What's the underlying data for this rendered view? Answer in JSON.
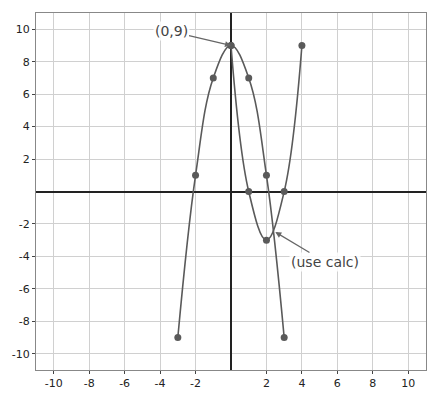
{
  "chart_data": {
    "type": "line",
    "series": [
      {
        "color": "#5a5a5a",
        "marker": "circle",
        "line_style": "solid",
        "x": [
          -3,
          -2,
          -1,
          0,
          1,
          2,
          3
        ],
        "values": [
          -9,
          1,
          7,
          9,
          7,
          1,
          -9
        ]
      },
      {
        "color": "#5a5a5a",
        "marker": "circle",
        "line_style": "solid",
        "x": [
          0,
          1,
          2,
          3,
          4
        ],
        "values": [
          9,
          0,
          -3,
          0,
          9
        ]
      }
    ],
    "annotations": [
      {
        "text": "(0,9)",
        "x": 0,
        "y": 9
      },
      {
        "text": "(use calc)",
        "x": 2.5,
        "y": -2.5
      }
    ],
    "xlim": [
      -11,
      11
    ],
    "ylim": [
      -11,
      11
    ],
    "xticks": [
      -10,
      -8,
      -6,
      -4,
      -2,
      2,
      4,
      6,
      8,
      10
    ],
    "yticks": [
      -10,
      -8,
      -6,
      -4,
      -2,
      2,
      4,
      6,
      8,
      10
    ],
    "grid": true
  }
}
